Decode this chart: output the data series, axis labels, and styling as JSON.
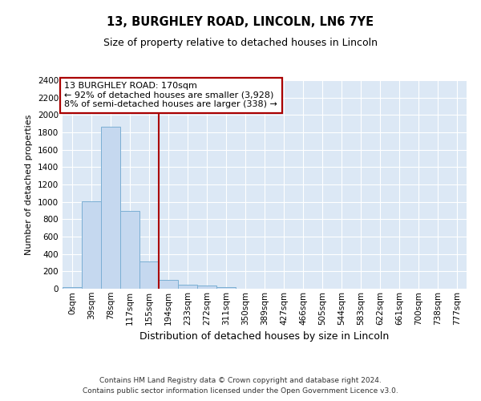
{
  "title1": "13, BURGHLEY ROAD, LINCOLN, LN6 7YE",
  "title2": "Size of property relative to detached houses in Lincoln",
  "xlabel": "Distribution of detached houses by size in Lincoln",
  "ylabel": "Number of detached properties",
  "footnote1": "Contains HM Land Registry data © Crown copyright and database right 2024.",
  "footnote2": "Contains public sector information licensed under the Open Government Licence v3.0.",
  "bar_labels": [
    "0sqm",
    "39sqm",
    "78sqm",
    "117sqm",
    "155sqm",
    "194sqm",
    "233sqm",
    "272sqm",
    "311sqm",
    "350sqm",
    "389sqm",
    "427sqm",
    "466sqm",
    "505sqm",
    "544sqm",
    "583sqm",
    "622sqm",
    "661sqm",
    "700sqm",
    "738sqm",
    "777sqm"
  ],
  "bar_values": [
    20,
    1010,
    1865,
    900,
    310,
    105,
    50,
    35,
    20,
    0,
    0,
    0,
    0,
    0,
    0,
    0,
    0,
    0,
    0,
    0,
    0
  ],
  "bar_color": "#c5d8ef",
  "bar_edge_color": "#7bafd4",
  "vline_x": 4.5,
  "annotation_title": "13 BURGHLEY ROAD: 170sqm",
  "annotation_line1": "← 92% of detached houses are smaller (3,928)",
  "annotation_line2": "8% of semi-detached houses are larger (338) →",
  "annotation_box_bg": "#ffffff",
  "annotation_box_edge": "#aa0000",
  "vline_color": "#aa0000",
  "ylim": [
    0,
    2400
  ],
  "yticks": [
    0,
    200,
    400,
    600,
    800,
    1000,
    1200,
    1400,
    1600,
    1800,
    2000,
    2200,
    2400
  ],
  "bg_color": "#dce8f5",
  "fig_bg": "#ffffff",
  "grid_color": "#ffffff",
  "title1_fontsize": 10.5,
  "title2_fontsize": 9,
  "ylabel_fontsize": 8,
  "xlabel_fontsize": 9,
  "tick_fontsize": 7.5,
  "footnote_fontsize": 6.5
}
